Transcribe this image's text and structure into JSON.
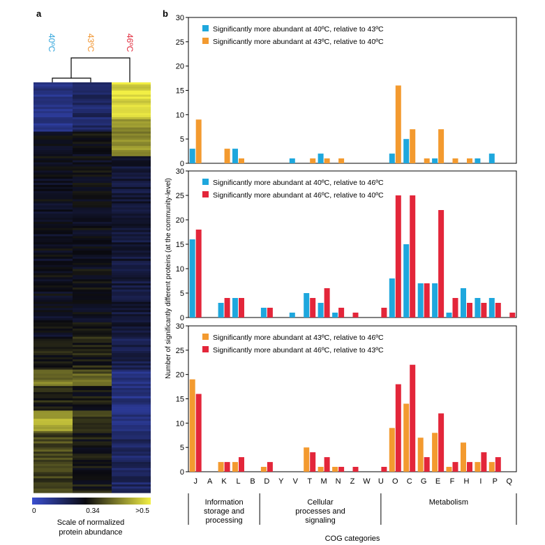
{
  "panel_a": {
    "label": "a",
    "column_labels": [
      {
        "text": "40ºC",
        "color": "#2ea3db"
      },
      {
        "text": "43ºC",
        "color": "#f0922b"
      },
      {
        "text": "46ºC",
        "color": "#e0283a"
      }
    ],
    "scale_ticks": [
      "0",
      "0.34",
      ">0.5"
    ],
    "scale_title_line1": "Scale of normalized",
    "scale_title_line2": "protein abundance"
  },
  "panel_b": {
    "label": "b",
    "ylabel": "Number of significantly different proteins (at the community-level)",
    "xlabel": "COG categories",
    "groups": [
      {
        "lines": [
          "Information",
          "storage and",
          "processing"
        ],
        "from": "J",
        "to": "B"
      },
      {
        "lines": [
          "Cellular",
          "processes and",
          "signaling"
        ],
        "from": "D",
        "to": "W"
      },
      {
        "lines": [
          "Metabolism"
        ],
        "from": "O",
        "to": "Q"
      }
    ]
  },
  "chart_data": [
    {
      "type": "bar",
      "categories": [
        "J",
        "A",
        "K",
        "L",
        "B",
        "D",
        "Y",
        "V",
        "T",
        "M",
        "N",
        "Z",
        "W",
        "U",
        "O",
        "C",
        "G",
        "E",
        "F",
        "H",
        "I",
        "P",
        "Q"
      ],
      "ylim": [
        0,
        30
      ],
      "yticks": [
        0,
        5,
        10,
        15,
        20,
        25,
        30
      ],
      "legend_position": "top-left",
      "series": [
        {
          "name": "Significantly more abundant at 40ºC, relative to 43ºC",
          "color": "#1ea7dd",
          "values": [
            3,
            0,
            0,
            3,
            0,
            0,
            0,
            1,
            0,
            2,
            0,
            0,
            0,
            0,
            2,
            5,
            0,
            1,
            0,
            0,
            1,
            2,
            0
          ]
        },
        {
          "name": "Significantly more abundant at 43ºC, relative to 40ºC",
          "color": "#f39a2f",
          "values": [
            9,
            0,
            3,
            1,
            0,
            0,
            0,
            0,
            1,
            1,
            1,
            0,
            0,
            0,
            16,
            7,
            1,
            7,
            1,
            1,
            0,
            0,
            0
          ]
        }
      ]
    },
    {
      "type": "bar",
      "categories": [
        "J",
        "A",
        "K",
        "L",
        "B",
        "D",
        "Y",
        "V",
        "T",
        "M",
        "N",
        "Z",
        "W",
        "U",
        "O",
        "C",
        "G",
        "E",
        "F",
        "H",
        "I",
        "P",
        "Q"
      ],
      "ylim": [
        0,
        30
      ],
      "yticks": [
        0,
        5,
        10,
        15,
        20,
        25,
        30
      ],
      "legend_position": "top-left",
      "series": [
        {
          "name": "Significantly more abundant at 40ºC, relative to 46ºC",
          "color": "#1ea7dd",
          "values": [
            16,
            0,
            3,
            4,
            0,
            2,
            0,
            1,
            5,
            3,
            1,
            0,
            0,
            0,
            8,
            15,
            7,
            7,
            1,
            6,
            4,
            4,
            0
          ]
        },
        {
          "name": "Significantly more abundant at 46ºC, relative to 40ºC",
          "color": "#e3263a",
          "values": [
            18,
            0,
            4,
            4,
            0,
            2,
            0,
            0,
            4,
            6,
            2,
            1,
            0,
            2,
            25,
            25,
            7,
            22,
            4,
            3,
            3,
            3,
            1
          ]
        }
      ]
    },
    {
      "type": "bar",
      "categories": [
        "J",
        "A",
        "K",
        "L",
        "B",
        "D",
        "Y",
        "V",
        "T",
        "M",
        "N",
        "Z",
        "W",
        "U",
        "O",
        "C",
        "G",
        "E",
        "F",
        "H",
        "I",
        "P",
        "Q"
      ],
      "ylim": [
        0,
        30
      ],
      "yticks": [
        0,
        5,
        10,
        15,
        20,
        25,
        30
      ],
      "legend_position": "top-left",
      "series": [
        {
          "name": "Significantly more abundant at 43ºC, relative to 46ºC",
          "color": "#f39a2f",
          "values": [
            19,
            0,
            2,
            2,
            0,
            1,
            0,
            0,
            5,
            1,
            1,
            0,
            0,
            0,
            9,
            14,
            7,
            8,
            1,
            6,
            2,
            2,
            0
          ]
        },
        {
          "name": "Significantly more abundant at 46ºC, relative to 43ºC",
          "color": "#e3263a",
          "values": [
            16,
            0,
            2,
            3,
            0,
            2,
            0,
            0,
            4,
            3,
            1,
            1,
            0,
            1,
            18,
            22,
            3,
            12,
            2,
            2,
            4,
            3,
            0
          ]
        }
      ]
    }
  ]
}
